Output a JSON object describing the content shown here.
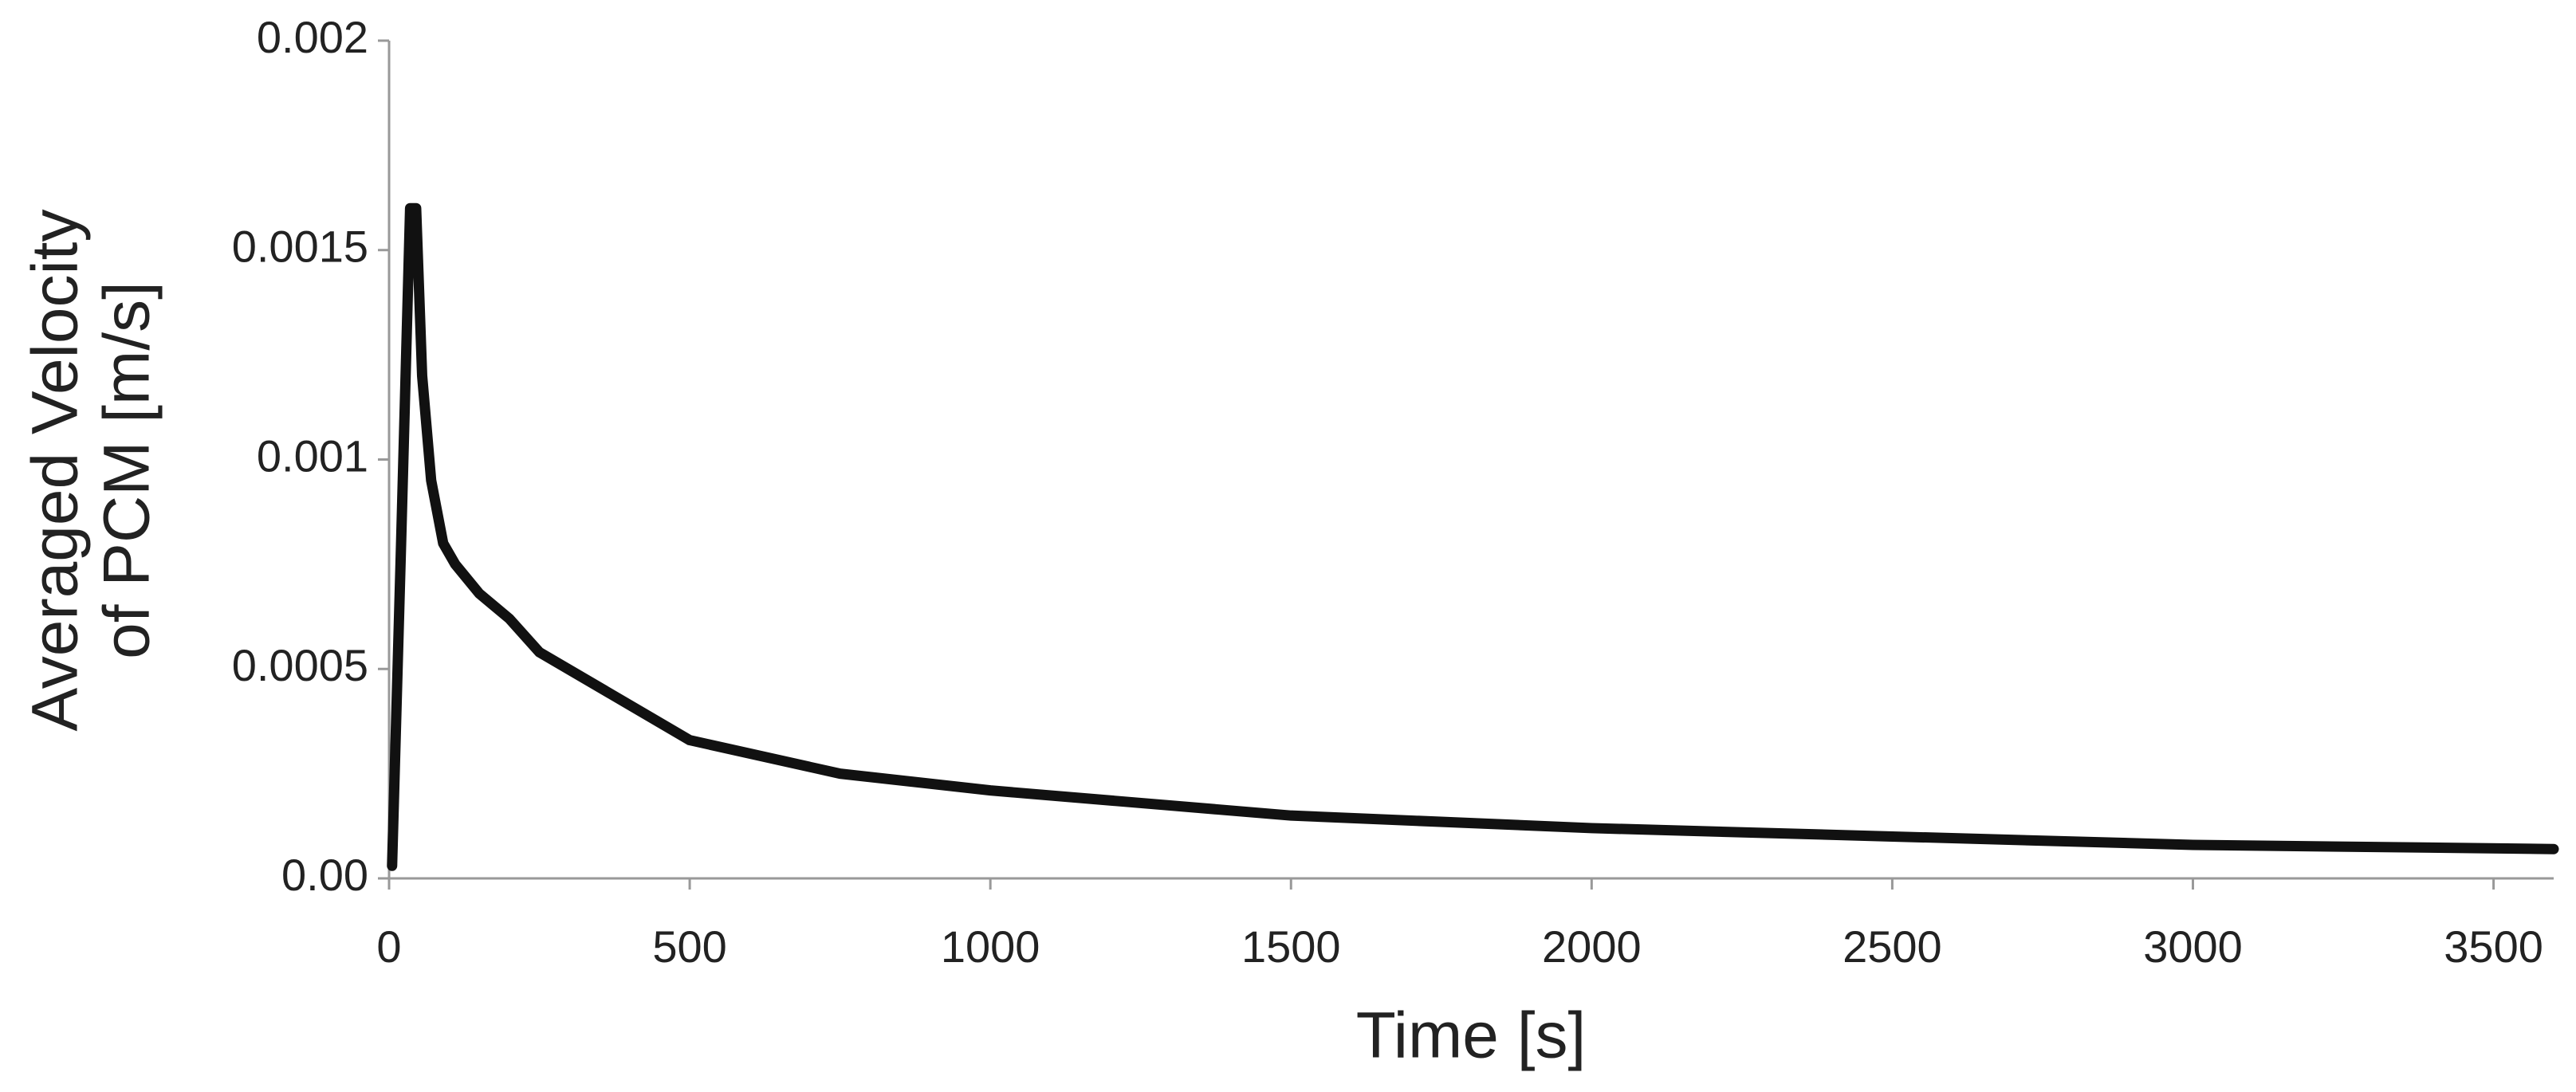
{
  "chart_data": {
    "type": "line",
    "x_label": "Time [s]",
    "y_label": [
      "Averaged Velocity",
      "of PCM [m/s]"
    ],
    "x": [
      5,
      20,
      35,
      45,
      55,
      70,
      90,
      110,
      150,
      200,
      250,
      500,
      750,
      1000,
      1500,
      2000,
      2500,
      3000,
      3600
    ],
    "series": [
      {
        "color": "#111111",
        "values": [
          3e-05,
          0.0008,
          0.0016,
          0.0016,
          0.0012,
          0.00095,
          0.0008,
          0.00075,
          0.00068,
          0.00062,
          0.00054,
          0.00033,
          0.00025,
          0.00021,
          0.00015,
          0.00012,
          0.0001,
          8e-05,
          7e-05
        ]
      }
    ],
    "xlim": [
      0,
      3600
    ],
    "ylim": [
      0,
      0.002
    ],
    "xticks": [
      0,
      500,
      1000,
      1500,
      2000,
      2500,
      3000,
      3500
    ],
    "yticks": [
      {
        "value": 0,
        "label": "0.00"
      },
      0.0005,
      0.001,
      0.0015,
      0.002
    ]
  }
}
